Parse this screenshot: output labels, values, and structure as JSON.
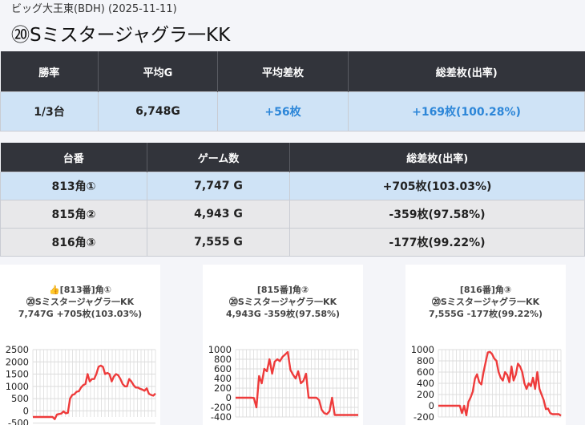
{
  "header": {
    "subtitle": "ビッグ大王東(BDH) (2025-11-11)",
    "title": "⑳Sミスタージャグラ一KK"
  },
  "summary": {
    "columns": [
      "勝率",
      "平均G",
      "平均差枚",
      "総差枚(出率)"
    ],
    "row": [
      "1/3台",
      "6,748G",
      "+56枚",
      "+169枚(100.28%)"
    ]
  },
  "machines": {
    "columns": [
      "台番",
      "ゲーム数",
      "総差枚(出率)"
    ],
    "rows": [
      [
        "813角①",
        "7,747 G",
        "+705枚(103.03%)"
      ],
      [
        "815角②",
        "4,943 G",
        "-359枚(97.58%)"
      ],
      [
        "816角③",
        "7,555 G",
        "-177枚(99.22%)"
      ]
    ]
  },
  "colors": {
    "line": "#ee3b3b",
    "header_bg": "#32343b",
    "highlight": "#cfe3f6",
    "positive": "#2c86d8"
  },
  "chart_data": [
    {
      "type": "line",
      "title": "👍[813番]角①",
      "subtitle": "⑳Sミスタージャグラ一KK",
      "caption": "7,747G +705枚(103.03%)",
      "ylim": [
        -250,
        2500
      ],
      "yticks": [
        2500,
        2000,
        1500,
        1000,
        500,
        0,
        -500
      ],
      "ytick_labels": [
        "2500",
        "2000",
        "1500",
        "1000",
        "500",
        "0",
        "-500"
      ],
      "values": [
        -250,
        -250,
        -250,
        -250,
        -250,
        -250,
        -250,
        -250,
        -250,
        -250,
        -340,
        -150,
        -130,
        -110,
        -20,
        -100,
        -80,
        500,
        650,
        680,
        780,
        800,
        950,
        1050,
        1100,
        1500,
        1200,
        1300,
        1300,
        1500,
        1800,
        1850,
        1800,
        1500,
        1550,
        1500,
        1200,
        1400,
        1500,
        1450,
        1300,
        1100,
        1000,
        1000,
        1300,
        1200,
        1050,
        950,
        950,
        900,
        870,
        820,
        920,
        700,
        650,
        620,
        705
      ]
    },
    {
      "type": "line",
      "title": "[815番]角②",
      "subtitle": "⑳Sミスタージャグラ一KK",
      "caption": "4,943G -359枚(97.58%)",
      "ylim": [
        -400,
        1000
      ],
      "yticks": [
        1000,
        800,
        600,
        400,
        200,
        0,
        -200,
        -400
      ],
      "ytick_labels": [
        "1000",
        "800",
        "600",
        "400",
        "200",
        "0",
        "-200",
        "-400"
      ],
      "values": [
        0,
        0,
        0,
        0,
        0,
        0,
        0,
        -5,
        -200,
        450,
        300,
        600,
        550,
        800,
        500,
        750,
        800,
        760,
        850,
        900,
        950,
        580,
        480,
        400,
        550,
        300,
        350,
        500,
        0,
        0,
        0,
        0,
        -50,
        -250,
        -320,
        -340,
        -280,
        0,
        -359,
        -359,
        -359,
        -359,
        -359,
        -359,
        -359,
        -359,
        -359,
        -359
      ]
    },
    {
      "type": "line",
      "title": "[816番]角③",
      "subtitle": "⑳Sミスタージャグラ一KK",
      "caption": "7,555G -177枚(99.22%)",
      "ylim": [
        -200,
        1000
      ],
      "yticks": [
        1000,
        800,
        600,
        400,
        200,
        0,
        -200
      ],
      "ytick_labels": [
        "1000",
        "800",
        "600",
        "400",
        "200",
        "0",
        "-200"
      ],
      "values": [
        0,
        0,
        0,
        0,
        0,
        0,
        0,
        0,
        0,
        0,
        0,
        -130,
        0,
        -170,
        70,
        150,
        250,
        480,
        560,
        420,
        380,
        600,
        780,
        950,
        960,
        920,
        840,
        800,
        600,
        500,
        450,
        600,
        550,
        420,
        700,
        450,
        550,
        750,
        700,
        600,
        400,
        300,
        400,
        350,
        500,
        300,
        600,
        300,
        200,
        100,
        -60,
        -50,
        -130,
        -150,
        -150,
        -150,
        -150,
        -177
      ]
    }
  ]
}
